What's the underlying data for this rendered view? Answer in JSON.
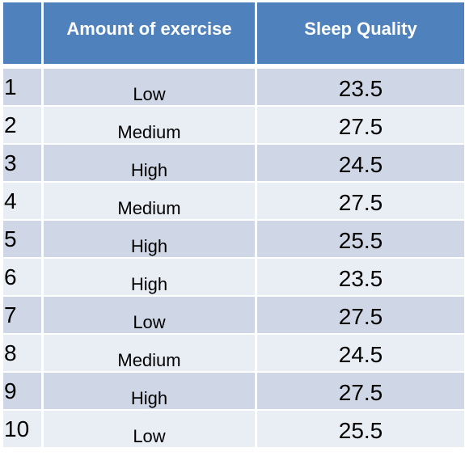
{
  "table": {
    "headers": [
      "",
      "Amount of exercise",
      "Sleep Quality"
    ],
    "rows": [
      {
        "index": "1",
        "exercise": "Low",
        "sleep_quality": "23.5"
      },
      {
        "index": "2",
        "exercise": "Medium",
        "sleep_quality": "27.5"
      },
      {
        "index": "3",
        "exercise": "High",
        "sleep_quality": "24.5"
      },
      {
        "index": "4",
        "exercise": "Medium",
        "sleep_quality": "27.5"
      },
      {
        "index": "5",
        "exercise": "High",
        "sleep_quality": "25.5"
      },
      {
        "index": "6",
        "exercise": "High",
        "sleep_quality": "23.5"
      },
      {
        "index": "7",
        "exercise": "Low",
        "sleep_quality": "27.5"
      },
      {
        "index": "8",
        "exercise": "Medium",
        "sleep_quality": "24.5"
      },
      {
        "index": "9",
        "exercise": "High",
        "sleep_quality": "27.5"
      },
      {
        "index": "10",
        "exercise": "Low",
        "sleep_quality": "25.5"
      }
    ],
    "colors": {
      "header": "#4f81bd",
      "row_odd": "#cfd7e6",
      "row_even": "#e9edf4"
    }
  }
}
